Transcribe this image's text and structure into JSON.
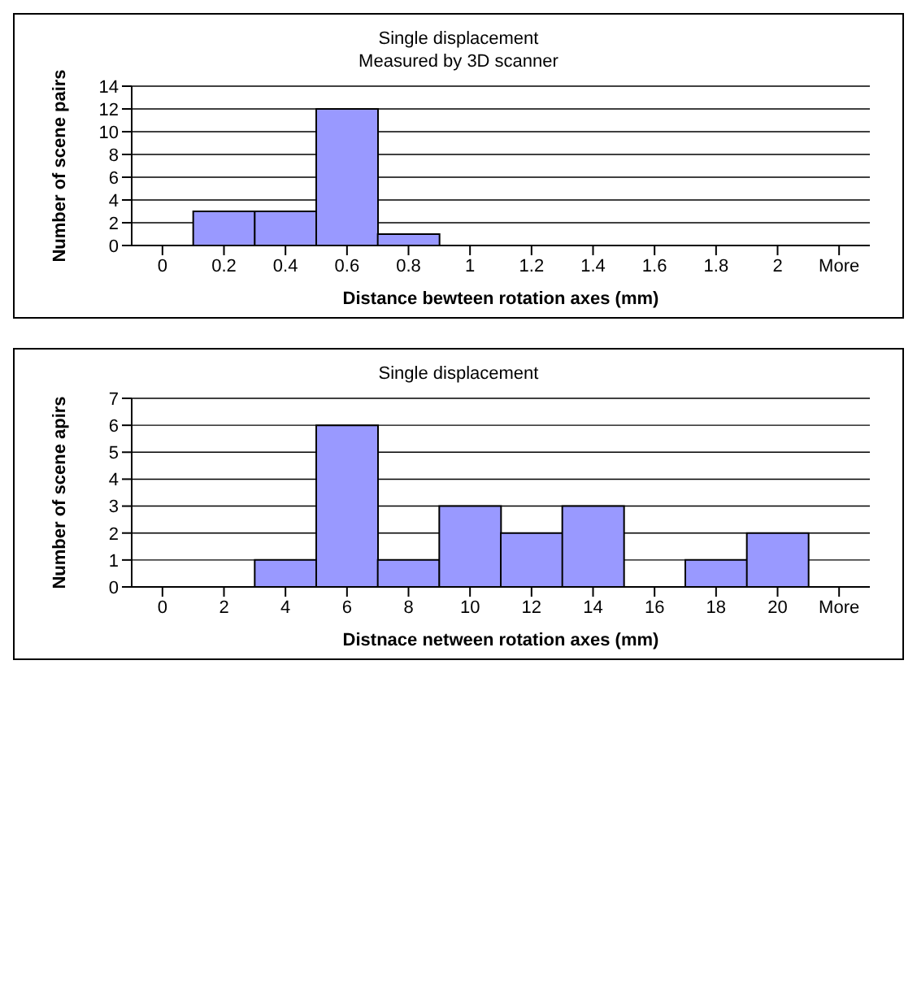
{
  "chart_data": [
    {
      "type": "bar",
      "title": "Single displacement",
      "subtitle": "Measured by 3D scanner",
      "xlabel": "Distance bewteen rotation axes (mm)",
      "ylabel": "Number of scene pairs",
      "categories": [
        "0",
        "0.2",
        "0.4",
        "0.6",
        "0.8",
        "1",
        "1.2",
        "1.4",
        "1.6",
        "1.8",
        "2",
        "More"
      ],
      "values": [
        0,
        3,
        3,
        12,
        1,
        0,
        0,
        0,
        0,
        0,
        0,
        0
      ],
      "color": "#9999ff",
      "ylim": [
        0,
        14
      ],
      "yticks": [
        0,
        2,
        4,
        6,
        8,
        10,
        12,
        14
      ],
      "grid": "y",
      "legend": false
    },
    {
      "type": "bar",
      "title": "Single displacement",
      "xlabel": "Distnace netween rotation axes (mm)",
      "ylabel": "Number of scene apirs",
      "categories": [
        "0",
        "2",
        "4",
        "6",
        "8",
        "10",
        "12",
        "14",
        "16",
        "18",
        "20",
        "More"
      ],
      "values": [
        0,
        0,
        1,
        6,
        1,
        3,
        2,
        3,
        0,
        1,
        2,
        0
      ],
      "color": "#9999ff",
      "ylim": [
        0,
        7
      ],
      "yticks": [
        0,
        1,
        2,
        3,
        4,
        5,
        6,
        7
      ],
      "grid": "y",
      "legend": false
    }
  ]
}
